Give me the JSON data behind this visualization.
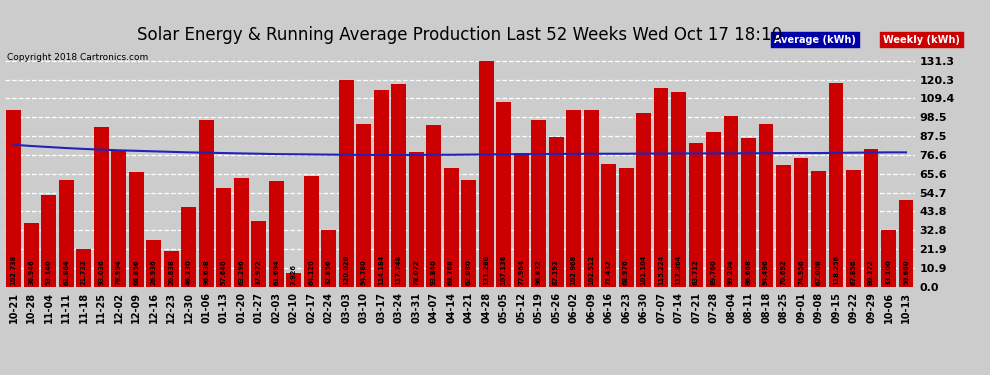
{
  "title": "Solar Energy & Running Average Production Last 52 Weeks Wed Oct 17 18:10",
  "copyright": "Copyright 2018 Cartronics.com",
  "legend_avg_label": "Average (kWh)",
  "legend_weekly_label": "Weekly (kWh)",
  "bar_color": "#cc0000",
  "avg_line_color": "#2222bb",
  "legend_avg_bg": "#0000aa",
  "legend_weekly_bg": "#cc0000",
  "background_color": "#cccccc",
  "grid_color": "white",
  "ytick_values": [
    0.0,
    10.9,
    21.9,
    32.8,
    43.8,
    54.7,
    65.6,
    76.6,
    87.5,
    98.5,
    109.4,
    120.3,
    131.3
  ],
  "categories": [
    "10-21",
    "10-28",
    "11-04",
    "11-11",
    "11-18",
    "11-25",
    "12-02",
    "12-09",
    "12-16",
    "12-23",
    "12-30",
    "01-06",
    "01-13",
    "01-20",
    "01-27",
    "02-03",
    "02-10",
    "02-17",
    "02-24",
    "03-03",
    "03-10",
    "03-17",
    "03-24",
    "03-31",
    "04-07",
    "04-14",
    "04-21",
    "04-28",
    "05-05",
    "05-12",
    "05-19",
    "05-26",
    "06-02",
    "06-09",
    "06-16",
    "06-23",
    "06-30",
    "07-07",
    "07-14",
    "07-21",
    "07-28",
    "08-04",
    "08-11",
    "08-18",
    "08-25",
    "09-01",
    "09-08",
    "09-15",
    "09-22",
    "09-29",
    "10-06",
    "10-13"
  ],
  "weekly_values": [
    102.738,
    36.946,
    53.14,
    61.864,
    21.732,
    93.036,
    78.994,
    66.856,
    26.936,
    20.838,
    46.23,
    96.638,
    57.64,
    63.296,
    37.972,
    61.694,
    7.926,
    64.12,
    32.856,
    120.02,
    94.78,
    114.184,
    117.748,
    78.072,
    93.84,
    68.768,
    62.08,
    131.28,
    107.136,
    77.964,
    96.832,
    87.192,
    102.968,
    102.512,
    71.432,
    68.976,
    101.104,
    115.224,
    112.864,
    83.712,
    89.76,
    99.204,
    86.668,
    94.496,
    70.692,
    74.956,
    67.008,
    118.256,
    67.856,
    80.272,
    33.1,
    50.66
  ],
  "avg_values": [
    82.5,
    81.8,
    81.2,
    80.6,
    80.1,
    79.7,
    79.3,
    79.0,
    78.7,
    78.4,
    78.1,
    77.9,
    77.7,
    77.5,
    77.3,
    77.1,
    77.0,
    76.9,
    76.8,
    76.7,
    76.6,
    76.6,
    76.6,
    76.6,
    76.7,
    76.7,
    76.8,
    76.9,
    77.0,
    77.0,
    77.1,
    77.2,
    77.2,
    77.3,
    77.3,
    77.3,
    77.4,
    77.4,
    77.5,
    77.5,
    77.5,
    77.5,
    77.6,
    77.6,
    77.7,
    77.7,
    77.7,
    77.8,
    77.9,
    78.0,
    78.1,
    78.1
  ],
  "ylim": [
    0.0,
    140
  ],
  "title_fontsize": 12,
  "copyright_fontsize": 6.5,
  "tick_fontsize": 7,
  "bar_label_fontsize": 4.8,
  "ytick_fontsize": 8
}
